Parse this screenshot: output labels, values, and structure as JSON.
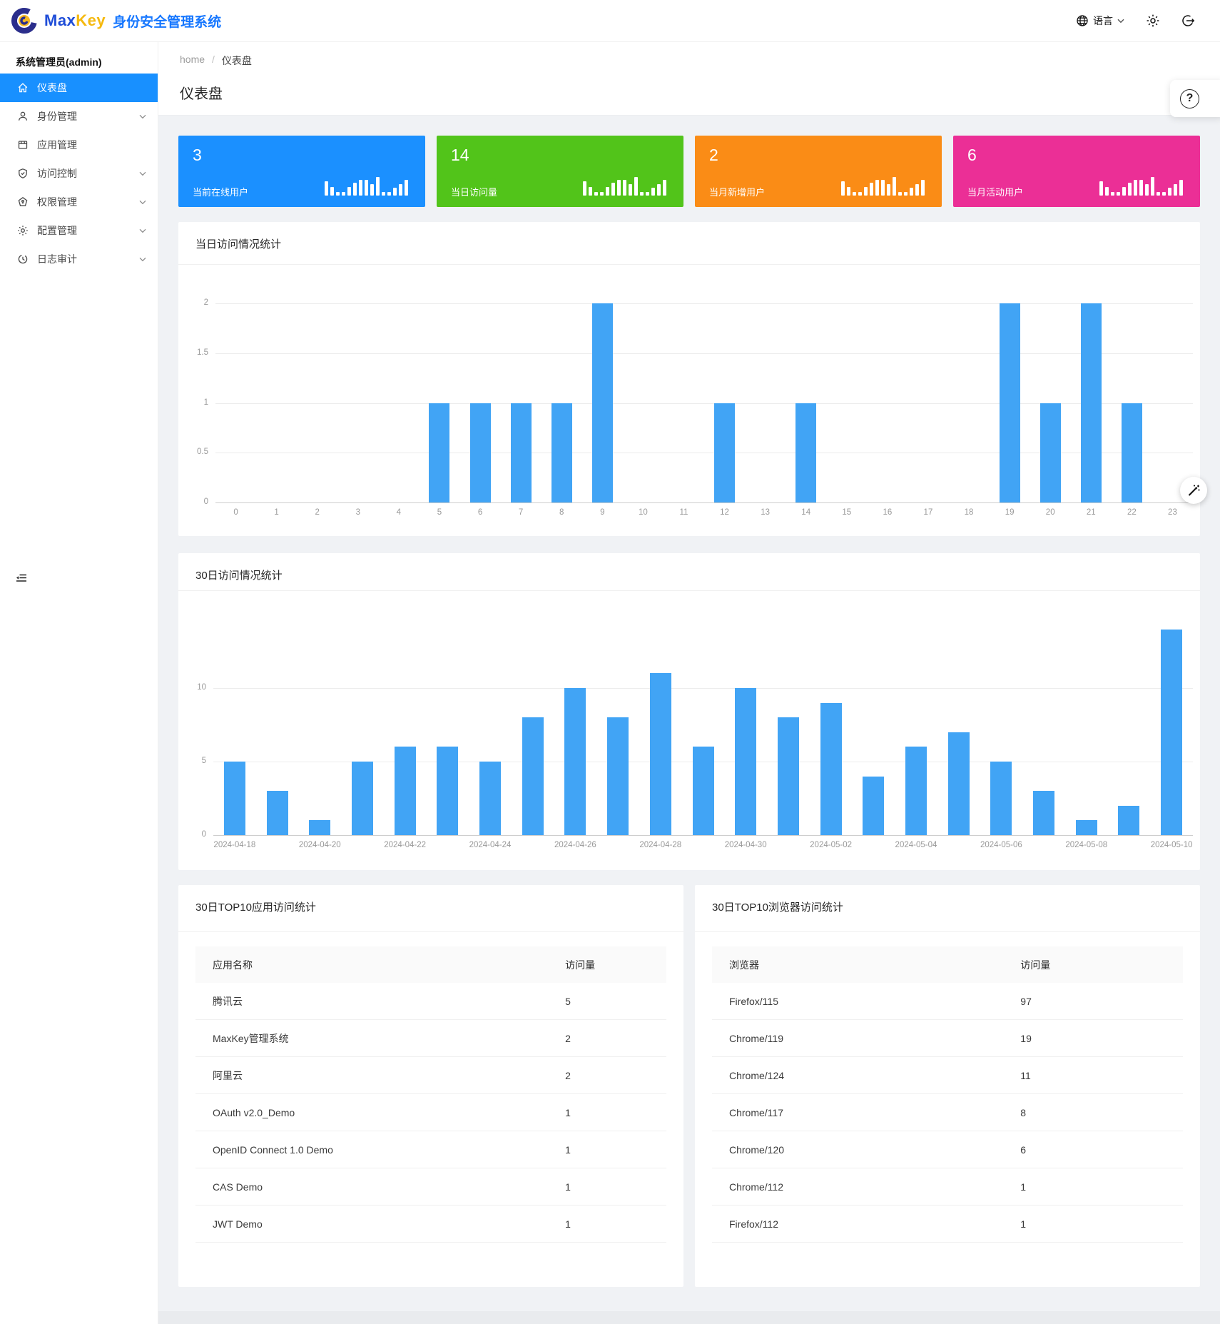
{
  "header": {
    "logo_text_primary": "Max",
    "logo_text_secondary": "Key",
    "logo_subtitle": "身份安全管理系统",
    "language_label": "语言"
  },
  "sidebar": {
    "user": "系统管理员(admin)",
    "items": [
      {
        "label": "仪表盘",
        "icon": "home-icon",
        "active": true,
        "chevron": false
      },
      {
        "label": "身份管理",
        "icon": "user-icon",
        "active": false,
        "chevron": true
      },
      {
        "label": "应用管理",
        "icon": "appstore-icon",
        "active": false,
        "chevron": false
      },
      {
        "label": "访问控制",
        "icon": "shield-icon",
        "active": false,
        "chevron": true
      },
      {
        "label": "权限管理",
        "icon": "gem-icon",
        "active": false,
        "chevron": true
      },
      {
        "label": "配置管理",
        "icon": "gear-icon",
        "active": false,
        "chevron": true
      },
      {
        "label": "日志审计",
        "icon": "clock-icon",
        "active": false,
        "chevron": true
      }
    ]
  },
  "breadcrumb": {
    "home": "home",
    "separator": "/",
    "current": "仪表盘"
  },
  "page_title": "仪表盘",
  "stat_cards": [
    {
      "value": "3",
      "label": "当前在线用户",
      "color": "#1b90ff"
    },
    {
      "value": "14",
      "label": "当日访问量",
      "color": "#52c41a"
    },
    {
      "value": "2",
      "label": "当月新增用户",
      "color": "#fa8c16"
    },
    {
      "value": "6",
      "label": "当月活动用户",
      "color": "#eb2f96"
    }
  ],
  "chart_data": [
    {
      "type": "bar",
      "title": "当日访问情况统计",
      "categories": [
        "0",
        "1",
        "2",
        "3",
        "4",
        "5",
        "6",
        "7",
        "8",
        "9",
        "10",
        "11",
        "12",
        "13",
        "14",
        "15",
        "16",
        "17",
        "18",
        "19",
        "20",
        "21",
        "22",
        "23"
      ],
      "values": [
        0,
        0,
        0,
        0,
        0,
        1,
        1,
        1,
        1,
        2,
        0,
        0,
        1,
        0,
        1,
        0,
        0,
        0,
        0,
        2,
        1,
        2,
        1,
        0
      ],
      "xlabel": "",
      "ylabel": "",
      "ylim": [
        0,
        2.25
      ],
      "yticks": [
        0,
        0.5,
        1,
        1.5,
        2
      ],
      "x_label_every": 1,
      "bar_color": "#41a4f5",
      "grid": true,
      "legend": "none"
    },
    {
      "type": "bar",
      "title": "30日访问情况统计",
      "categories": [
        "2024-04-18",
        "2024-04-19",
        "2024-04-20",
        "2024-04-21",
        "2024-04-22",
        "2024-04-23",
        "2024-04-24",
        "2024-04-25",
        "2024-04-26",
        "2024-04-27",
        "2024-04-28",
        "2024-04-29",
        "2024-04-30",
        "2024-05-01",
        "2024-05-02",
        "2024-05-03",
        "2024-05-04",
        "2024-05-05",
        "2024-05-06",
        "2024-05-07",
        "2024-05-08",
        "2024-05-09",
        "2024-05-10"
      ],
      "values": [
        5,
        3,
        1,
        5,
        6,
        6,
        5,
        8,
        10,
        8,
        11,
        6,
        10,
        8,
        9,
        4,
        6,
        7,
        5,
        3,
        1,
        2,
        14
      ],
      "xlabel": "",
      "ylabel": "",
      "ylim": [
        0,
        14.5
      ],
      "yticks": [
        0,
        5,
        10
      ],
      "x_label_every": 2,
      "bar_color": "#41a4f5",
      "grid": true,
      "legend": "none"
    }
  ],
  "tables": [
    {
      "title": "30日TOP10应用访问统计",
      "columns": [
        "应用名称",
        "访问量"
      ],
      "rows": [
        [
          "腾讯云",
          "5"
        ],
        [
          "MaxKey管理系统",
          "2"
        ],
        [
          "阿里云",
          "2"
        ],
        [
          "OAuth v2.0_Demo",
          "1"
        ],
        [
          "OpenID Connect 1.0 Demo",
          "1"
        ],
        [
          "CAS Demo",
          "1"
        ],
        [
          "JWT Demo",
          "1"
        ]
      ]
    },
    {
      "title": "30日TOP10浏览器访问统计",
      "columns": [
        "浏览器",
        "访问量"
      ],
      "rows": [
        [
          "Firefox/115",
          "97"
        ],
        [
          "Chrome/119",
          "19"
        ],
        [
          "Chrome/124",
          "11"
        ],
        [
          "Chrome/117",
          "8"
        ],
        [
          "Chrome/120",
          "6"
        ],
        [
          "Chrome/112",
          "1"
        ],
        [
          "Firefox/112",
          "1"
        ]
      ]
    }
  ]
}
